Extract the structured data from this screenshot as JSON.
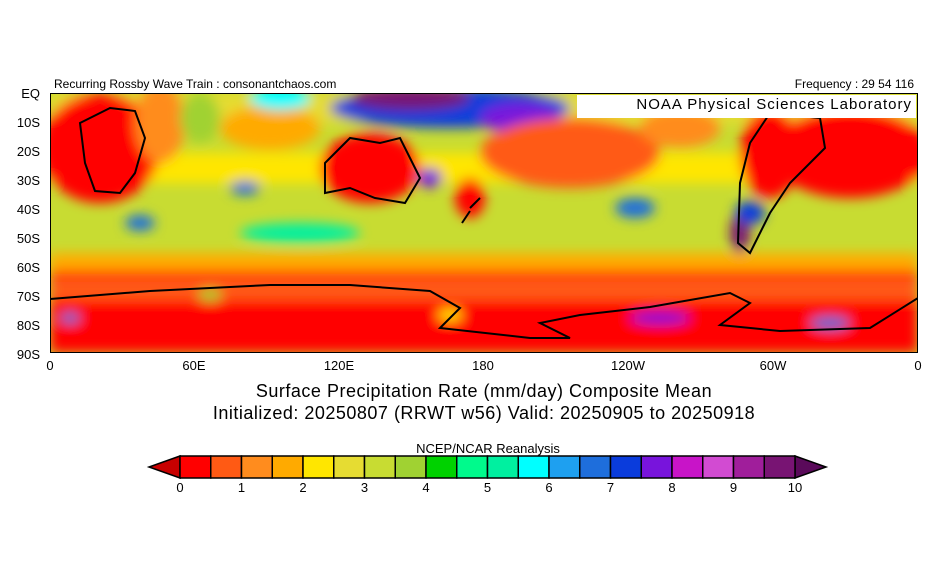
{
  "header": {
    "left": "Recurring Rossby Wave Train : consonantchaos.com",
    "right": "Frequency : 29 54 116",
    "badge": "NOAA Physical Sciences Laboratory"
  },
  "axes": {
    "lat_labels": [
      "EQ",
      "10S",
      "20S",
      "30S",
      "40S",
      "50S",
      "60S",
      "70S",
      "80S",
      "90S"
    ],
    "lon_labels": [
      "0",
      "60E",
      "120E",
      "180",
      "120W",
      "60W",
      "0"
    ]
  },
  "titles": {
    "line1": "Surface Precipitation Rate (mm/day) Composite Mean",
    "line2": "Initialized: 20250807 (RRWT w56) Valid: 20250905 to 20250918"
  },
  "colorbar": {
    "source": "NCEP/NCAR Reanalysis",
    "labels": [
      "0",
      "1",
      "2",
      "3",
      "4",
      "5",
      "6",
      "7",
      "8",
      "9",
      "10"
    ],
    "under_color": "#c80000",
    "over_color": "#5a0a5a",
    "colors": [
      "#ff0000",
      "#ff5a14",
      "#ff8c1e",
      "#ffaa00",
      "#ffe600",
      "#e6dc32",
      "#c8dc32",
      "#a0d232",
      "#00d200",
      "#00fa8c",
      "#00f0a0",
      "#00ffff",
      "#1ea0f0",
      "#1e6edc",
      "#0a3cdc",
      "#7814dc",
      "#c814c8",
      "#d24bd2",
      "#a01e9b",
      "#781473"
    ]
  }
}
